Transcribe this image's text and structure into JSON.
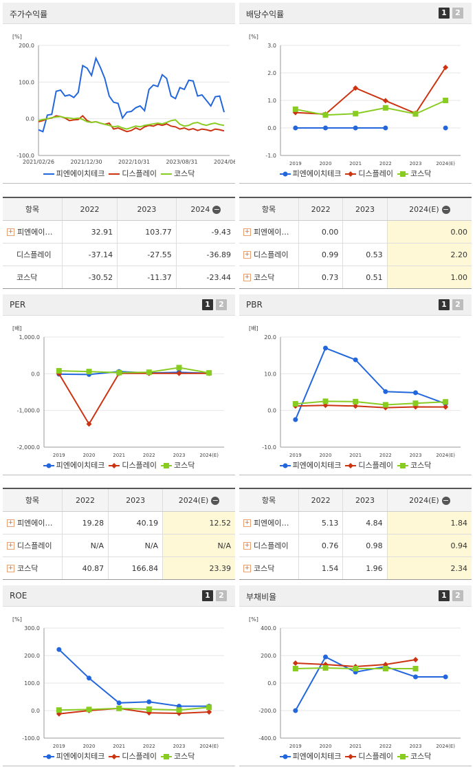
{
  "colors": {
    "pien": "#2266dd",
    "display": "#cc3311",
    "kosdaq": "#88cc22"
  },
  "legend_labels": [
    "피엔에이치테크",
    "디스플레이",
    "코스닥"
  ],
  "charts": [
    {
      "key": "stock",
      "title": "주가수익률",
      "unit": "[%]",
      "type": "line",
      "paging": false,
      "yticks": [
        "200.0",
        "100.0",
        "0.0",
        "-100.0"
      ],
      "ylim": [
        -100,
        200
      ],
      "xticks": [
        "2021/02/26",
        "2021/12/30",
        "2022/10/31",
        "2023/08/31",
        "2024/06/28"
      ],
      "series": [
        {
          "name": "피엔에이치테크",
          "values": [
            -30,
            -35,
            10,
            12,
            75,
            78,
            62,
            65,
            58,
            72,
            145,
            138,
            118,
            165,
            140,
            110,
            62,
            45,
            42,
            2,
            18,
            20,
            30,
            35,
            22,
            80,
            92,
            88,
            120,
            110,
            62,
            55,
            85,
            80,
            105,
            103,
            62,
            65,
            50,
            35,
            60,
            62,
            18
          ]
        },
        {
          "name": "디스플레이",
          "values": [
            -8,
            -5,
            0,
            2,
            8,
            6,
            2,
            -5,
            -3,
            -2,
            8,
            -5,
            -10,
            -8,
            -12,
            -15,
            -12,
            -28,
            -25,
            -30,
            -35,
            -32,
            -25,
            -30,
            -22,
            -18,
            -20,
            -15,
            -18,
            -14,
            -20,
            -22,
            -28,
            -25,
            -30,
            -27,
            -32,
            -28,
            -30,
            -33,
            -28,
            -30,
            -33
          ]
        },
        {
          "name": "코스닥",
          "values": [
            -5,
            -2,
            0,
            3,
            5,
            6,
            3,
            2,
            0,
            2,
            -2,
            -8,
            -10,
            -8,
            -12,
            -15,
            -18,
            -22,
            -20,
            -25,
            -28,
            -24,
            -20,
            -22,
            -18,
            -16,
            -14,
            -12,
            -14,
            -10,
            -5,
            -3,
            -15,
            -20,
            -18,
            -12,
            -10,
            -15,
            -18,
            -14,
            -12,
            -16,
            -18
          ]
        }
      ]
    },
    {
      "key": "dividend",
      "title": "배당수익률",
      "unit": "[%]",
      "type": "line",
      "paging": true,
      "pages": [
        "1",
        "2"
      ],
      "yticks": [
        "3.0",
        "2.0",
        "1.0",
        "0.0",
        "-1.0"
      ],
      "ylim": [
        -1,
        3
      ],
      "xticks": [
        "2019",
        "2020",
        "2021",
        "2022",
        "2023",
        "2024(E)"
      ],
      "series": [
        {
          "name": "피엔에이치테크",
          "values": [
            0.0,
            0.0,
            0.0,
            0.0,
            null,
            0.0
          ]
        },
        {
          "name": "디스플레이",
          "values": [
            0.56,
            0.5,
            1.45,
            0.99,
            0.53,
            2.2
          ]
        },
        {
          "name": "코스닥",
          "values": [
            0.68,
            0.47,
            0.52,
            0.73,
            0.51,
            1.0
          ]
        }
      ]
    },
    {
      "key": "per",
      "title": "PER",
      "unit": "[배]",
      "type": "line",
      "paging": true,
      "pages": [
        "1",
        "2"
      ],
      "yticks": [
        "1,000.0",
        "0.0",
        "-1,000.0",
        "-2,000.0"
      ],
      "ylim": [
        -2000,
        1000
      ],
      "xticks": [
        "2019",
        "2020",
        "2021",
        "2022",
        "2023",
        "2024(E)"
      ],
      "series": [
        {
          "name": "피엔에이치테크",
          "values": [
            -10,
            -20,
            60,
            19.28,
            40.19,
            12.52
          ]
        },
        {
          "name": "디스플레이",
          "values": [
            0,
            -1370,
            10,
            10,
            10,
            10
          ]
        },
        {
          "name": "코스닥",
          "values": [
            80,
            60,
            30,
            40.87,
            166.84,
            23.39
          ]
        }
      ]
    },
    {
      "key": "pbr",
      "title": "PBR",
      "unit": "[배]",
      "type": "line",
      "paging": true,
      "pages": [
        "1",
        "2"
      ],
      "yticks": [
        "20.0",
        "10.0",
        "0.0",
        "-10.0"
      ],
      "ylim": [
        -10,
        20
      ],
      "xticks": [
        "2019",
        "2020",
        "2021",
        "2022",
        "2023",
        "2024(E)"
      ],
      "series": [
        {
          "name": "피엔에이치테크",
          "values": [
            -2.5,
            17.0,
            13.8,
            5.13,
            4.84,
            1.84
          ]
        },
        {
          "name": "디스플레이",
          "values": [
            1.2,
            1.4,
            1.2,
            0.76,
            0.98,
            0.94
          ]
        },
        {
          "name": "코스닥",
          "values": [
            1.8,
            2.5,
            2.4,
            1.54,
            1.96,
            2.34
          ]
        }
      ]
    },
    {
      "key": "roe",
      "title": "ROE",
      "unit": "[%]",
      "type": "line",
      "paging": true,
      "pages": [
        "1",
        "2"
      ],
      "yticks": [
        "300.0",
        "200.0",
        "100.0",
        "0.0",
        "-100.0"
      ],
      "ylim": [
        -100,
        300
      ],
      "xticks": [
        "2019",
        "2020",
        "2021",
        "2022",
        "2023",
        "2024(E)"
      ],
      "series": [
        {
          "name": "피엔에이치테크",
          "values": [
            222,
            118,
            28,
            32,
            16,
            16
          ]
        },
        {
          "name": "디스플레이",
          "values": [
            -12,
            0,
            8,
            -8,
            -10,
            -5
          ]
        },
        {
          "name": "코스닥",
          "values": [
            2,
            4,
            8,
            5,
            2,
            12
          ]
        }
      ]
    },
    {
      "key": "debt",
      "title": "부채비율",
      "unit": "[%]",
      "type": "line",
      "paging": true,
      "pages": [
        "1",
        "2"
      ],
      "yticks": [
        "400.0",
        "200.0",
        "0.0",
        "-200.0",
        "-400.0"
      ],
      "ylim": [
        -400,
        400
      ],
      "xticks": [
        "2019",
        "2020",
        "2021",
        "2022",
        "2023",
        "2024(E)"
      ],
      "series": [
        {
          "name": "피엔에이치테크",
          "values": [
            -200,
            190,
            80,
            120,
            45,
            45
          ]
        },
        {
          "name": "디스플레이",
          "values": [
            145,
            135,
            120,
            135,
            170,
            null
          ]
        },
        {
          "name": "코스닥",
          "values": [
            105,
            110,
            105,
            105,
            105,
            null
          ]
        }
      ]
    }
  ],
  "tables": [
    {
      "key": "stock_tbl",
      "header": [
        "항목",
        "2022",
        "2023",
        "2024"
      ],
      "header_minus": true,
      "highlight_last": false,
      "rows": [
        {
          "plus": true,
          "name": "피엔에이…",
          "values": [
            "32.91",
            "103.77",
            "-9.43"
          ]
        },
        {
          "plus": false,
          "name": "디스플레이",
          "values": [
            "-37.14",
            "-27.55",
            "-36.89"
          ]
        },
        {
          "plus": false,
          "name": "코스닥",
          "values": [
            "-30.52",
            "-11.37",
            "-23.44"
          ]
        }
      ]
    },
    {
      "key": "dividend_tbl",
      "header": [
        "항목",
        "2022",
        "2023",
        "2024(E)"
      ],
      "header_minus": true,
      "highlight_last": true,
      "rows": [
        {
          "plus": true,
          "name": "피엔에이…",
          "values": [
            "0.00",
            "",
            "0.00"
          ]
        },
        {
          "plus": true,
          "name": "디스플레이",
          "values": [
            "0.99",
            "0.53",
            "2.20"
          ]
        },
        {
          "plus": true,
          "name": "코스닥",
          "values": [
            "0.73",
            "0.51",
            "1.00"
          ]
        }
      ]
    },
    {
      "key": "per_tbl",
      "header": [
        "항목",
        "2022",
        "2023",
        "2024(E)"
      ],
      "header_minus": true,
      "highlight_last": true,
      "rows": [
        {
          "plus": true,
          "name": "피엔에이…",
          "values": [
            "19.28",
            "40.19",
            "12.52"
          ]
        },
        {
          "plus": true,
          "name": "디스플레이",
          "values": [
            "N/A",
            "N/A",
            "N/A"
          ]
        },
        {
          "plus": true,
          "name": "코스닥",
          "values": [
            "40.87",
            "166.84",
            "23.39"
          ]
        }
      ]
    },
    {
      "key": "pbr_tbl",
      "header": [
        "항목",
        "2022",
        "2023",
        "2024(E)"
      ],
      "header_minus": true,
      "highlight_last": true,
      "rows": [
        {
          "plus": true,
          "name": "피엔에이…",
          "values": [
            "5.13",
            "4.84",
            "1.84"
          ]
        },
        {
          "plus": true,
          "name": "디스플레이",
          "values": [
            "0.76",
            "0.98",
            "0.94"
          ]
        },
        {
          "plus": true,
          "name": "코스닥",
          "values": [
            "1.54",
            "1.96",
            "2.34"
          ]
        }
      ]
    }
  ]
}
